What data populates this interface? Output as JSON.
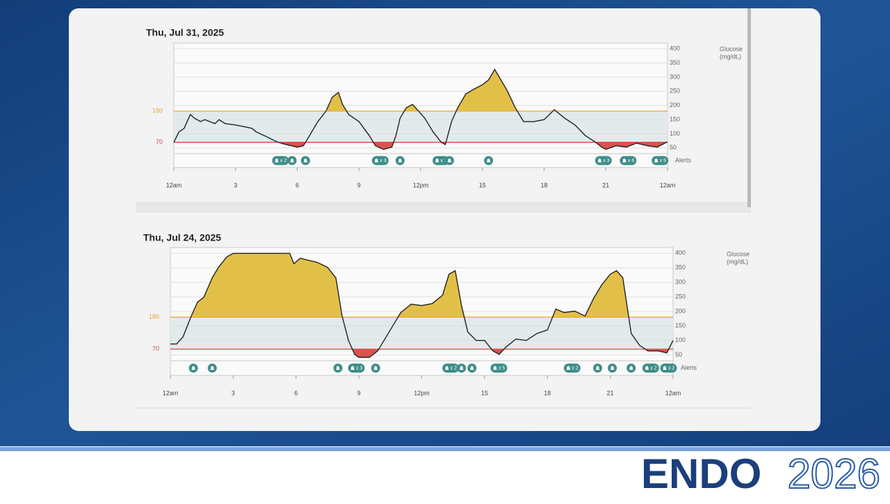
{
  "chart_data": [
    {
      "type": "line",
      "title": "Thu, Jul 31, 2025",
      "x": [
        0,
        0.25,
        0.5,
        0.8,
        1,
        1.3,
        1.5,
        2,
        2.2,
        2.5,
        3,
        3.5,
        3.8,
        4,
        4.5,
        5,
        5.3,
        5.7,
        6,
        6.3,
        6.6,
        7,
        7.4,
        7.7,
        8,
        8.2,
        8.5,
        9,
        9.5,
        9.8,
        10.2,
        10.6,
        10.8,
        11,
        11.3,
        11.6,
        11.9,
        12.2,
        12.6,
        13,
        13.2,
        13.5,
        13.8,
        14.2,
        14.6,
        15,
        15.3,
        15.6,
        15.9,
        16.2,
        16.6,
        17,
        17.5,
        18,
        18.5,
        19,
        19.5,
        20,
        20.5,
        20.8,
        21,
        21.5,
        22,
        22.5,
        23,
        23.5,
        24
      ],
      "values": [
        70,
        107,
        119,
        168,
        155,
        143,
        150,
        136,
        150,
        136,
        131,
        124,
        119,
        107,
        90,
        72,
        65,
        58,
        53,
        58,
        94,
        143,
        180,
        229,
        246,
        204,
        168,
        143,
        94,
        58,
        45,
        53,
        94,
        155,
        192,
        204,
        180,
        155,
        107,
        70,
        62,
        143,
        192,
        241,
        258,
        273,
        290,
        327,
        290,
        253,
        192,
        143,
        143,
        150,
        185,
        155,
        131,
        94,
        70,
        53,
        45,
        58,
        53,
        67,
        58,
        53,
        72
      ],
      "color": "#222222",
      "high": 180,
      "low": 70,
      "high_color": "#e2c048",
      "low_color": "#d9534f",
      "high_line_color": "#e8a33a",
      "low_line_color": "#d64545",
      "target_color": "#e3eaec",
      "xlim": [
        0,
        24
      ],
      "xticks": [
        {
          "value": 0,
          "label": "12am"
        },
        3,
        6,
        9,
        {
          "value": 12,
          "label": "12pm"
        },
        15,
        18,
        21,
        {
          "value": 24,
          "label": "12am"
        }
      ],
      "ylim": [
        30,
        420
      ],
      "yticks": [
        50,
        100,
        150,
        200,
        250,
        300,
        350,
        400
      ],
      "ylabel": [
        "Glucose",
        "(mg/dL)"
      ],
      "grid": true,
      "alerts_label": "Alerts",
      "alert_color": "#3e8e8a",
      "alerts": [
        {
          "x": 5.0,
          "label": "x 2"
        },
        {
          "x": 5.75
        },
        {
          "x": 6.4
        },
        {
          "x": 9.85,
          "label": "x 3"
        },
        {
          "x": 11.0
        },
        {
          "x": 12.8,
          "label": "x 3"
        },
        {
          "x": 13.4
        },
        {
          "x": 15.3
        },
        {
          "x": 20.7,
          "label": "x 3"
        },
        {
          "x": 21.9,
          "label": "x 6"
        },
        {
          "x": 23.45,
          "label": "x 9"
        }
      ]
    },
    {
      "type": "line",
      "title": "Thu, Jul 24, 2025",
      "x": [
        0,
        0.3,
        0.6,
        1,
        1.3,
        1.6,
        2,
        2.3,
        2.7,
        3,
        4,
        5,
        5.7,
        5.9,
        6.2,
        6.6,
        7,
        7.5,
        7.9,
        8.2,
        8.5,
        8.8,
        9,
        9.5,
        9.9,
        10.2,
        10.6,
        11,
        11.5,
        12,
        12.5,
        13,
        13.3,
        13.6,
        13.9,
        14.2,
        14.6,
        15,
        15.4,
        15.7,
        16,
        16.5,
        17,
        17.5,
        18,
        18.4,
        18.8,
        19.3,
        19.8,
        20.2,
        20.6,
        21,
        21.3,
        21.6,
        22,
        22.4,
        22.8,
        23.3,
        23.7,
        24
      ],
      "values": [
        88,
        88,
        112,
        184,
        232,
        249,
        316,
        352,
        388,
        400,
        400,
        400,
        400,
        364,
        383,
        376,
        369,
        352,
        316,
        184,
        100,
        52,
        42,
        42,
        64,
        100,
        148,
        196,
        225,
        220,
        227,
        256,
        328,
        340,
        220,
        129,
        100,
        100,
        64,
        52,
        76,
        105,
        100,
        124,
        136,
        208,
        196,
        201,
        184,
        244,
        292,
        328,
        340,
        316,
        124,
        83,
        64,
        64,
        57,
        100
      ],
      "color": "#222222",
      "high": 180,
      "low": 70,
      "high_color": "#e2c048",
      "low_color": "#d9534f",
      "high_line_color": "#e8a33a",
      "low_line_color": "#d64545",
      "target_color": "#e3eaec",
      "xlim": [
        0,
        24
      ],
      "xticks": [
        {
          "value": 0,
          "label": "12am"
        },
        3,
        6,
        9,
        {
          "value": 12,
          "label": "12pm"
        },
        15,
        18,
        21,
        {
          "value": 24,
          "label": "12am"
        }
      ],
      "ylim": [
        30,
        420
      ],
      "yticks": [
        50,
        100,
        150,
        200,
        250,
        300,
        350,
        400
      ],
      "ylabel": [
        "Glucose",
        "(mg/dL)"
      ],
      "grid": true,
      "alerts_label": "Alerts",
      "alert_color": "#3e8e8a",
      "alerts": [
        {
          "x": 1.1
        },
        {
          "x": 2.0
        },
        {
          "x": 8.0
        },
        {
          "x": 8.7,
          "label": "x 3"
        },
        {
          "x": 9.8
        },
        {
          "x": 13.2,
          "label": "x 2"
        },
        {
          "x": 13.9
        },
        {
          "x": 14.4
        },
        {
          "x": 15.5,
          "label": "x 5"
        },
        {
          "x": 19.0,
          "label": "x 2"
        },
        {
          "x": 20.4
        },
        {
          "x": 21.1
        },
        {
          "x": 22.0
        },
        {
          "x": 22.75,
          "label": "x 2"
        },
        {
          "x": 23.6,
          "label": "x 2"
        }
      ]
    }
  ],
  "logo": {
    "name": "ENDO",
    "year": "2026"
  }
}
